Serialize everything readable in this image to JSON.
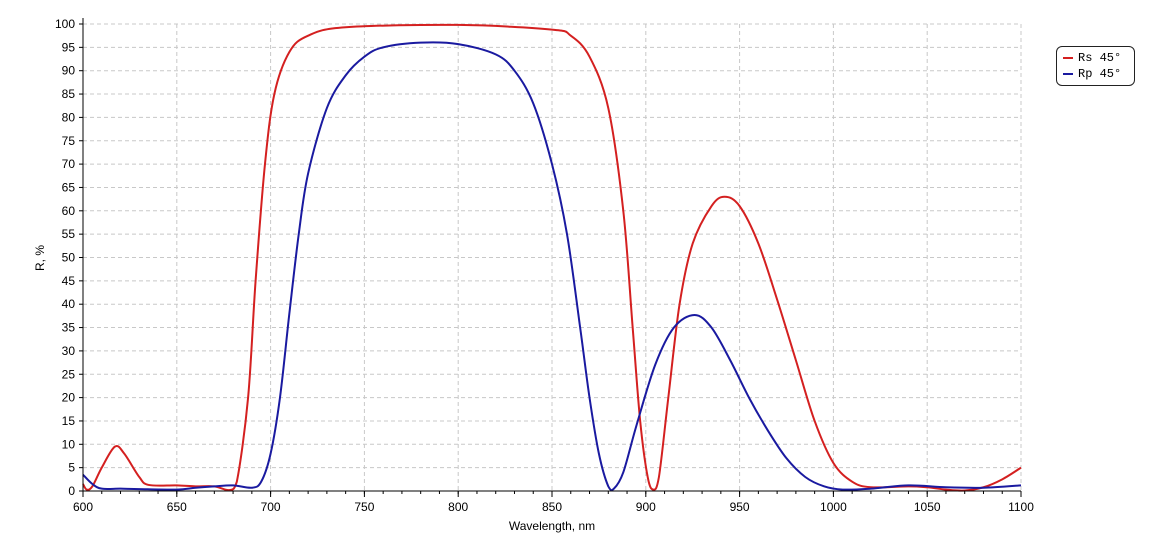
{
  "chart_data": {
    "type": "line",
    "title": "",
    "xlabel": "Wavelength, nm",
    "ylabel": "R, %",
    "xlim": [
      600,
      1100
    ],
    "ylim": [
      0,
      100
    ],
    "xticks": [
      600,
      650,
      700,
      750,
      800,
      850,
      900,
      950,
      1000,
      1050,
      1100
    ],
    "yticks": [
      0,
      5,
      10,
      15,
      20,
      25,
      30,
      35,
      40,
      45,
      50,
      55,
      60,
      65,
      70,
      75,
      80,
      85,
      90,
      95,
      100
    ],
    "grid": true,
    "legend_position": "top-right outside",
    "series": [
      {
        "name": "Rs 45°",
        "color": "#d42020",
        "x": [
          600,
          602,
          605,
          610,
          617,
          622,
          630,
          635,
          650,
          660,
          670,
          678,
          682,
          688,
          692,
          697,
          702,
          710,
          720,
          740,
          800,
          850,
          860,
          870,
          880,
          888,
          893,
          897,
          901,
          904,
          907,
          912,
          918,
          925,
          935,
          942,
          950,
          960,
          970,
          980,
          990,
          1000,
          1010,
          1020,
          1040,
          1050,
          1060,
          1070,
          1080,
          1090,
          1100
        ],
        "y": [
          1.5,
          0.3,
          1,
          5,
          9.5,
          8,
          3,
          1.3,
          1.2,
          1,
          1,
          0.2,
          2,
          20,
          45,
          70,
          85,
          94,
          97.5,
          99.3,
          99.8,
          98.8,
          97.5,
          93,
          82,
          60,
          35,
          15,
          3,
          0.3,
          3,
          20,
          40,
          53,
          61,
          63,
          61,
          53,
          41,
          28,
          15,
          6,
          2,
          0.8,
          1,
          0.8,
          0.3,
          0.1,
          0.8,
          2.5,
          5
        ]
      },
      {
        "name": "Rp 45°",
        "color": "#1a1aa0",
        "x": [
          600,
          605,
          610,
          620,
          630,
          650,
          660,
          670,
          680,
          690,
          695,
          700,
          705,
          710,
          715,
          720,
          730,
          740,
          750,
          760,
          780,
          800,
          820,
          830,
          840,
          850,
          858,
          865,
          870,
          875,
          880,
          883,
          888,
          895,
          905,
          915,
          926,
          935,
          945,
          955,
          965,
          975,
          985,
          995,
          1005,
          1020,
          1040,
          1060,
          1080,
          1100
        ],
        "y": [
          3.5,
          1.5,
          0.5,
          0.5,
          0.4,
          0.3,
          0.7,
          1,
          1.2,
          0.7,
          2,
          8,
          20,
          38,
          55,
          68,
          82,
          89,
          93,
          95,
          96,
          95.7,
          93.5,
          90,
          83,
          70,
          55,
          35,
          20,
          8,
          1,
          0.5,
          4,
          14,
          27,
          35,
          37.7,
          35,
          28,
          20,
          13,
          7,
          3,
          1,
          0.3,
          0.5,
          1.2,
          0.8,
          0.7,
          1.2
        ]
      }
    ]
  }
}
